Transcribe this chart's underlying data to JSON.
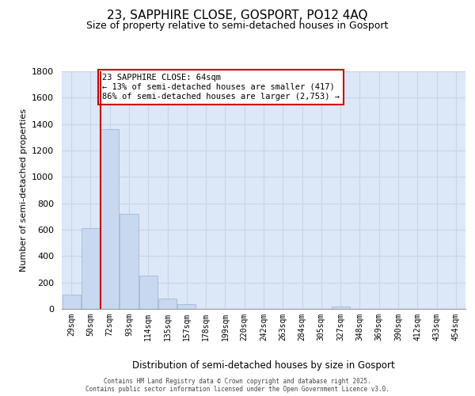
{
  "title1": "23, SAPPHIRE CLOSE, GOSPORT, PO12 4AQ",
  "title2": "Size of property relative to semi-detached houses in Gosport",
  "xlabel": "Distribution of semi-detached houses by size in Gosport",
  "ylabel": "Number of semi-detached properties",
  "categories": [
    "29sqm",
    "50sqm",
    "72sqm",
    "93sqm",
    "114sqm",
    "135sqm",
    "157sqm",
    "178sqm",
    "199sqm",
    "220sqm",
    "242sqm",
    "263sqm",
    "284sqm",
    "305sqm",
    "327sqm",
    "348sqm",
    "369sqm",
    "390sqm",
    "412sqm",
    "433sqm",
    "454sqm"
  ],
  "values": [
    110,
    610,
    1360,
    720,
    250,
    80,
    35,
    0,
    0,
    0,
    0,
    0,
    0,
    0,
    20,
    0,
    0,
    0,
    0,
    0,
    0
  ],
  "bar_color": "#c8d8f0",
  "bar_edge_color": "#9ab0d0",
  "red_line_x": 1.5,
  "annotation_title": "23 SAPPHIRE CLOSE: 64sqm",
  "annotation_line1": "← 13% of semi-detached houses are smaller (417)",
  "annotation_line2": "86% of semi-detached houses are larger (2,753) →",
  "annotation_box_color": "#ffffff",
  "annotation_box_edge": "#cc0000",
  "red_line_color": "#cc0000",
  "ylim": [
    0,
    1800
  ],
  "yticks": [
    0,
    200,
    400,
    600,
    800,
    1000,
    1200,
    1400,
    1600,
    1800
  ],
  "grid_color": "#c8d4e8",
  "bg_color": "#dce8f8",
  "footer1": "Contains HM Land Registry data © Crown copyright and database right 2025.",
  "footer2": "Contains public sector information licensed under the Open Government Licence v3.0."
}
